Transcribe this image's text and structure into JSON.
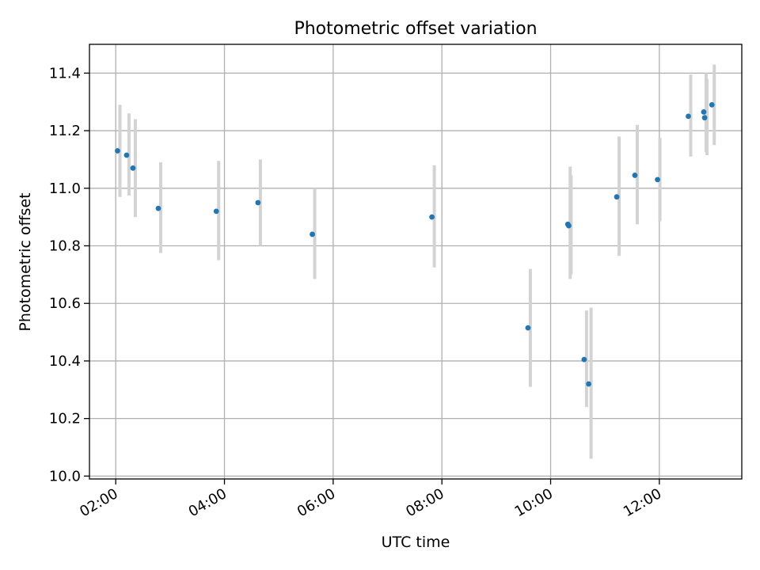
{
  "chart_data": {
    "type": "scatter",
    "title": "Photometric offset variation",
    "xlabel": "UTC time",
    "ylabel": "Photometric offset",
    "x_axis": {
      "kind": "time",
      "range": [
        "01:31",
        "13:31"
      ],
      "ticks": [
        "02:00",
        "04:00",
        "06:00",
        "08:00",
        "10:00",
        "12:00"
      ]
    },
    "y_axis": {
      "range": [
        9.99,
        11.5
      ],
      "ticks": [
        "10.0",
        "10.2",
        "10.4",
        "10.6",
        "10.8",
        "11.0",
        "11.2",
        "11.4"
      ],
      "tick_values": [
        10.0,
        10.2,
        10.4,
        10.6,
        10.8,
        11.0,
        11.2,
        11.4
      ]
    },
    "grid": true,
    "legend": "none",
    "marker_color": "#1f77b4",
    "errorbar_color": "#d3d3d3",
    "points": [
      {
        "time": "02:02",
        "y": 11.13,
        "err_low": 10.97,
        "err_high": 11.29
      },
      {
        "time": "02:12",
        "y": 11.115,
        "err_low": 10.975,
        "err_high": 11.26
      },
      {
        "time": "02:19",
        "y": 11.07,
        "err_low": 10.9,
        "err_high": 11.24
      },
      {
        "time": "02:47",
        "y": 10.93,
        "err_low": 10.775,
        "err_high": 11.09
      },
      {
        "time": "03:51",
        "y": 10.92,
        "err_low": 10.75,
        "err_high": 11.095
      },
      {
        "time": "04:37",
        "y": 10.95,
        "err_low": 10.8,
        "err_high": 11.1
      },
      {
        "time": "05:37",
        "y": 10.84,
        "err_low": 10.685,
        "err_high": 11.0
      },
      {
        "time": "07:49",
        "y": 10.9,
        "err_low": 10.725,
        "err_high": 11.08
      },
      {
        "time": "09:35",
        "y": 10.515,
        "err_low": 10.31,
        "err_high": 10.72
      },
      {
        "time": "10:19",
        "y": 10.875,
        "err_low": 10.685,
        "err_high": 11.075
      },
      {
        "time": "10:20",
        "y": 10.87,
        "err_low": 10.7,
        "err_high": 11.045
      },
      {
        "time": "10:37",
        "y": 10.405,
        "err_low": 10.24,
        "err_high": 10.575
      },
      {
        "time": "10:42",
        "y": 10.32,
        "err_low": 10.06,
        "err_high": 10.585
      },
      {
        "time": "11:13",
        "y": 10.97,
        "err_low": 10.765,
        "err_high": 11.18
      },
      {
        "time": "11:33",
        "y": 11.045,
        "err_low": 10.875,
        "err_high": 11.22
      },
      {
        "time": "11:58",
        "y": 11.03,
        "err_low": 10.885,
        "err_high": 11.175
      },
      {
        "time": "12:32",
        "y": 11.25,
        "err_low": 11.11,
        "err_high": 11.395
      },
      {
        "time": "12:49",
        "y": 11.265,
        "err_low": 11.125,
        "err_high": 11.4
      },
      {
        "time": "12:50",
        "y": 11.245,
        "err_low": 11.115,
        "err_high": 11.38
      },
      {
        "time": "12:58",
        "y": 11.29,
        "err_low": 11.15,
        "err_high": 11.43
      }
    ]
  }
}
